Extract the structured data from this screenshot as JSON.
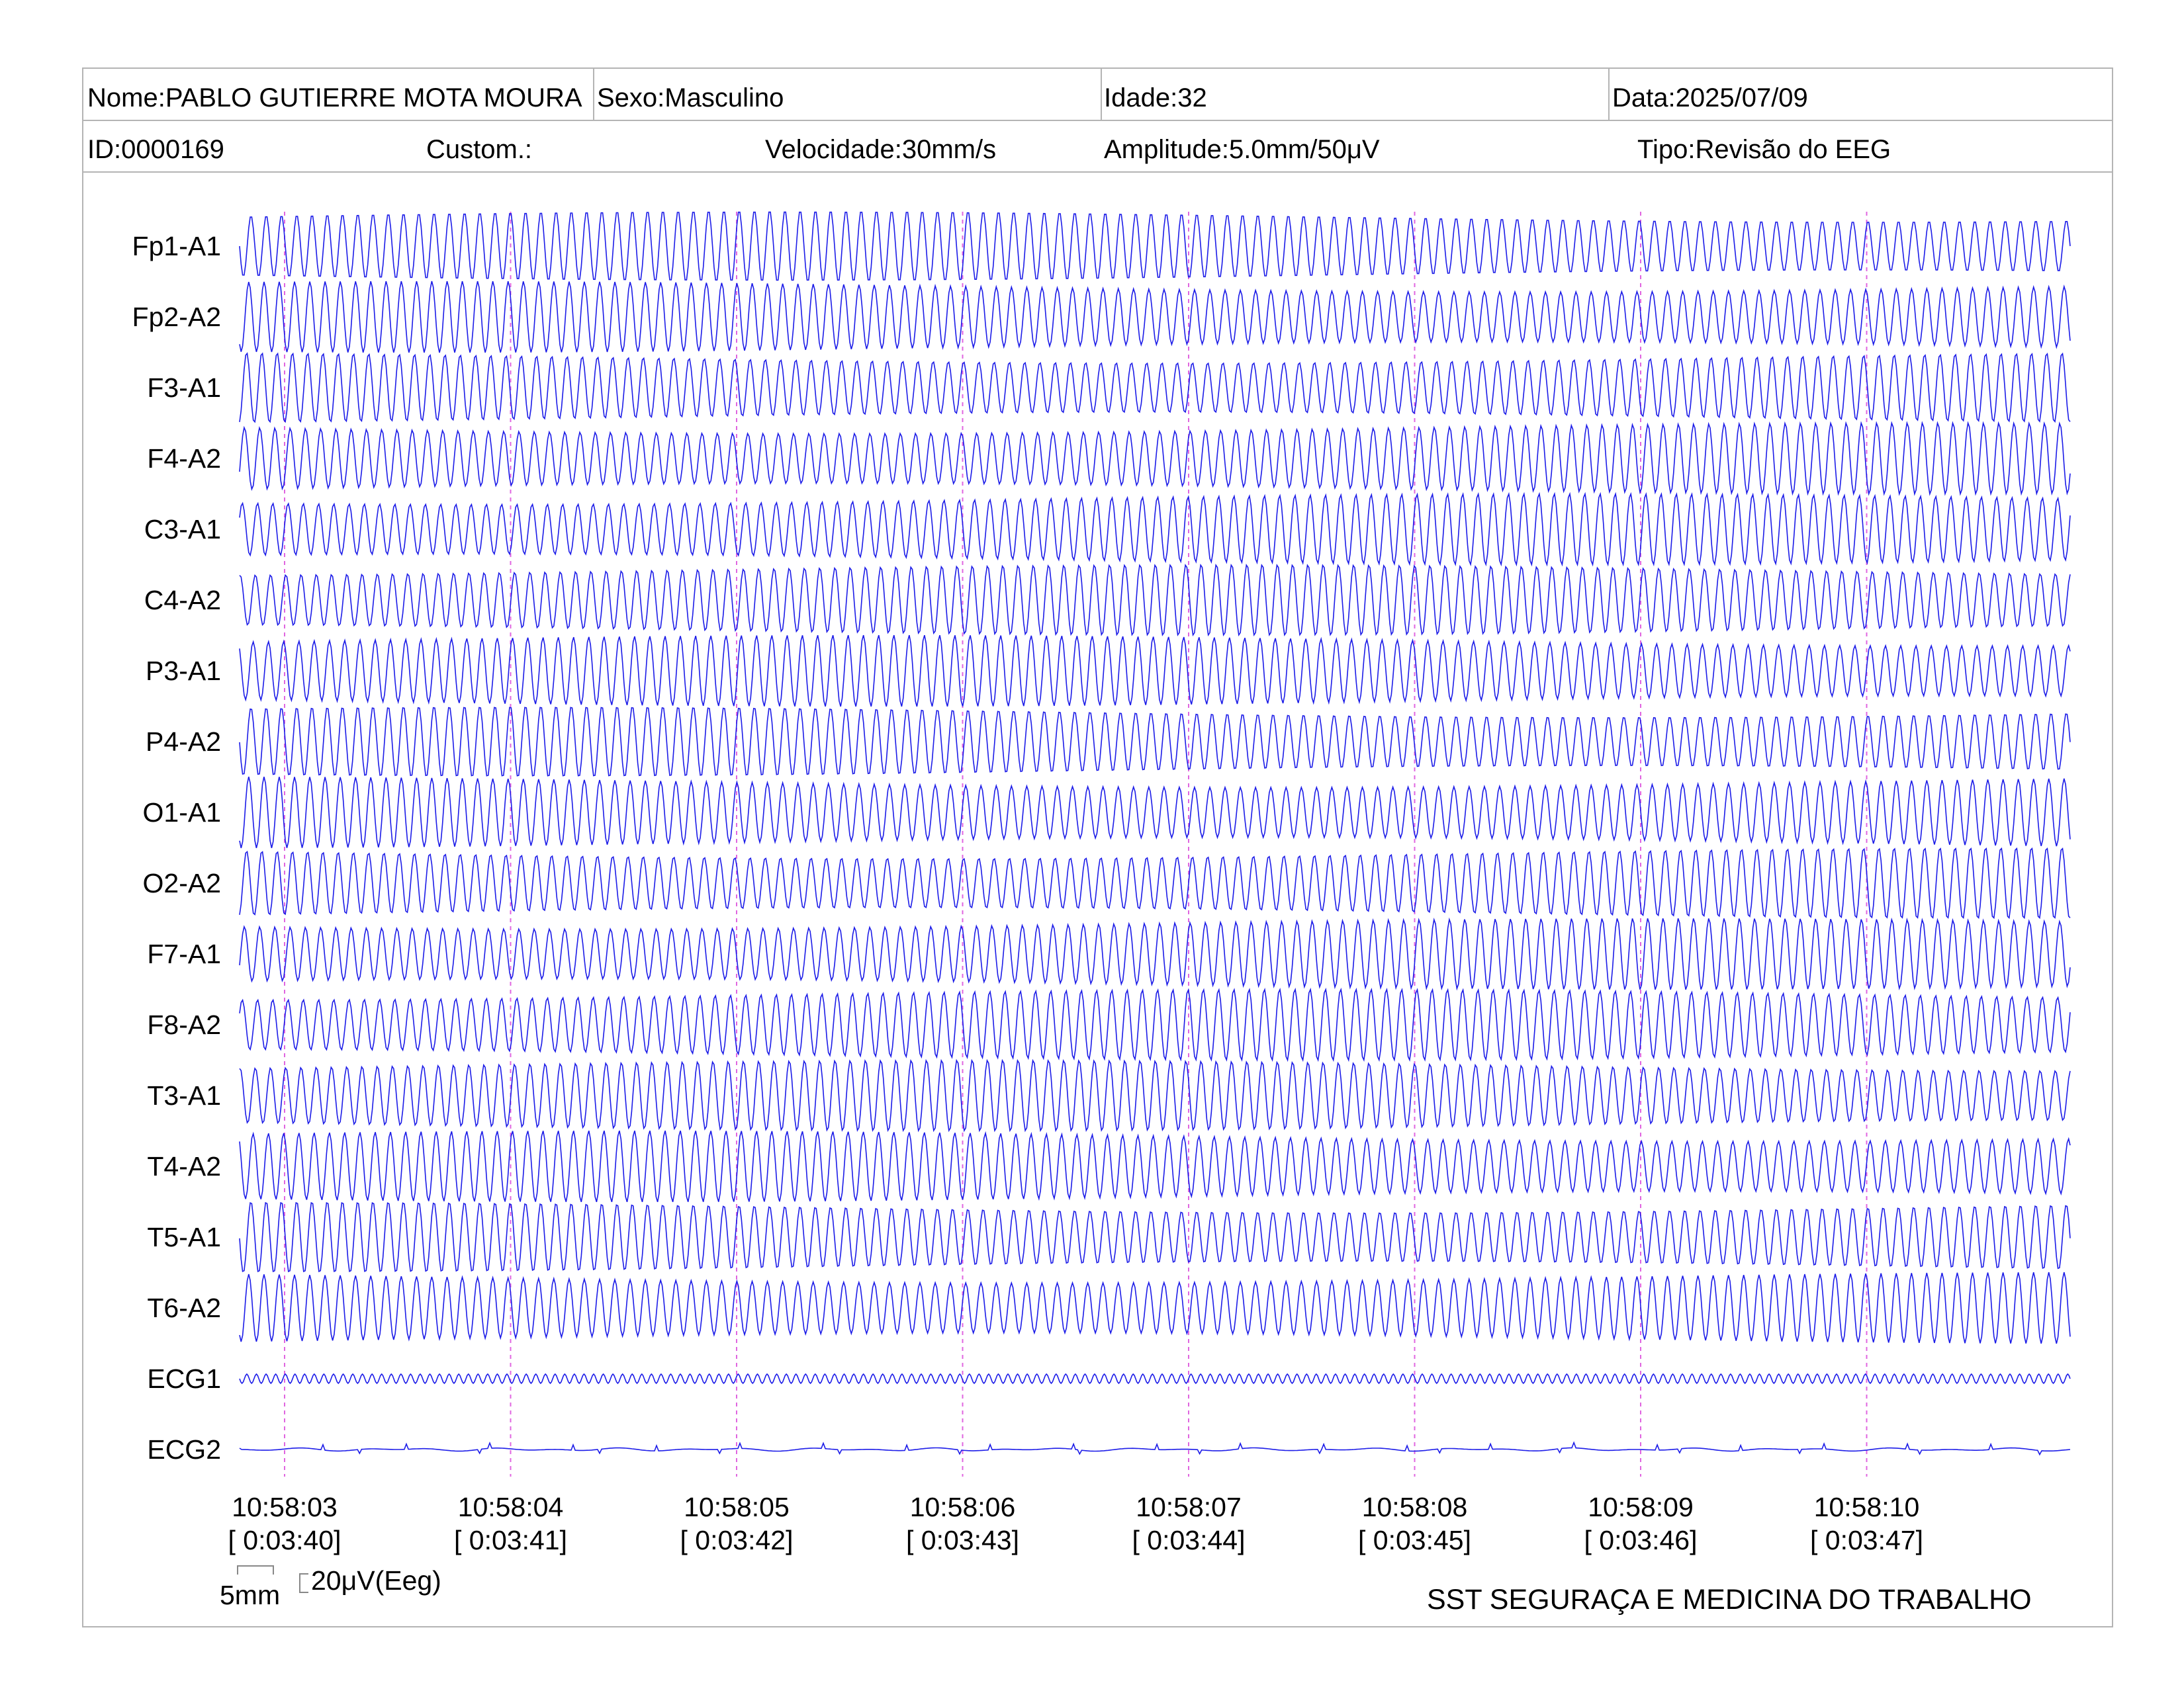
{
  "header": {
    "name": "Nome:PABLO GUTIERRE MOTA MOURA",
    "sex": "Sexo:Masculino",
    "age": "Idade:32",
    "date": "Data:2025/07/09",
    "id": "ID:0000169",
    "custom": "Custom.:",
    "speed": "Velocidade:30mm/s",
    "amplitude": "Amplitude:5.0mm/50μV",
    "type": "Tipo:Revisão do EEG"
  },
  "colors": {
    "trace": "#1c1ce8",
    "marker": "#e066e0",
    "border": "#b4b4b4"
  },
  "chart_data": {
    "type": "line",
    "channels": [
      "Fp1-A1",
      "Fp2-A2",
      "F3-A1",
      "F4-A2",
      "C3-A1",
      "C4-A2",
      "P3-A1",
      "P4-A2",
      "O1-A1",
      "O2-A2",
      "F7-A1",
      "F8-A2",
      "T3-A1",
      "T4-A2",
      "T5-A1",
      "T6-A2",
      "ECG1",
      "ECG2"
    ],
    "time_markers": [
      {
        "clock": "10:58:03",
        "elapsed": "[ 0:03:40]"
      },
      {
        "clock": "10:58:04",
        "elapsed": "[ 0:03:41]"
      },
      {
        "clock": "10:58:05",
        "elapsed": "[ 0:03:42]"
      },
      {
        "clock": "10:58:06",
        "elapsed": "[ 0:03:43]"
      },
      {
        "clock": "10:58:07",
        "elapsed": "[ 0:03:44]"
      },
      {
        "clock": "10:58:08",
        "elapsed": "[ 0:03:45]"
      },
      {
        "clock": "10:58:09",
        "elapsed": "[ 0:03:46]"
      },
      {
        "clock": "10:58:10",
        "elapsed": "[ 0:03:47]"
      }
    ],
    "eeg_wave_cycles": 120,
    "ecg1_wave_cycles": 190
  },
  "scale": {
    "time": "5mm",
    "amplitude": "20μV(Eeg)"
  },
  "footer": "SST SEGURAÇA E MEDICINA DO TRABALHO"
}
